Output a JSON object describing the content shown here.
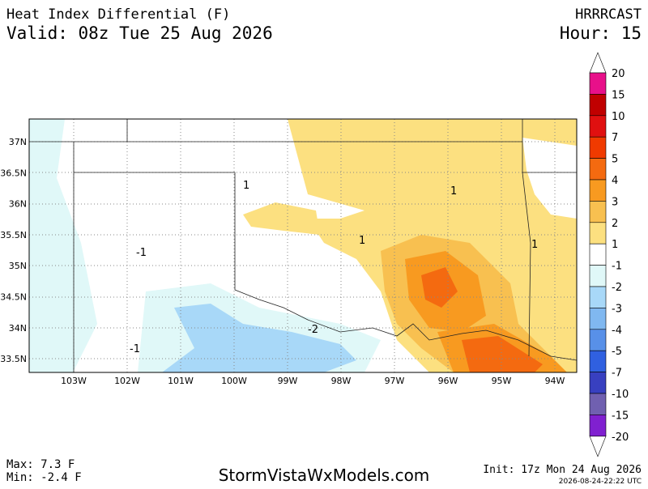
{
  "header": {
    "title": "Heat Index Differential (F)",
    "valid": "Valid: 08z Tue 25 Aug 2026",
    "model": "HRRRCAST",
    "hour": "Hour: 15"
  },
  "lat_labels": [
    "37N",
    "36.5N",
    "36N",
    "35.5N",
    "35N",
    "34.5N",
    "34N",
    "33.5N"
  ],
  "lon_labels": [
    "103W",
    "102W",
    "101W",
    "100W",
    "99W",
    "98W",
    "97W",
    "96W",
    "95W",
    "94W"
  ],
  "contour_labels": [
    "1",
    "1",
    "1",
    "1",
    "-1",
    "-2",
    "-1"
  ],
  "colorbar": {
    "labels": [
      "20",
      "15",
      "10",
      "7",
      "5",
      "4",
      "3",
      "2",
      "1",
      "-1",
      "-2",
      "-3",
      "-4",
      "-5",
      "-7",
      "-10",
      "-15",
      "-20"
    ],
    "colors": [
      "#ffffff",
      "#e8108a",
      "#c00000",
      "#e01010",
      "#f03a00",
      "#f46a10",
      "#f89a20",
      "#f8c050",
      "#fce080",
      "#ffffff",
      "#e0f8f8",
      "#a8d8f8",
      "#80b8f0",
      "#5890e8",
      "#3060e0",
      "#3840c0",
      "#7060b0",
      "#8020d0",
      "#ffffff"
    ]
  },
  "footer": {
    "max": "Max: 7.3 F",
    "min": "Min: -2.4 F",
    "website": "StormVistaWxModels.com",
    "init": "Init: 17z Mon 24 Aug 2026",
    "timestamp": "2026-08-24-22:22 UTC"
  }
}
